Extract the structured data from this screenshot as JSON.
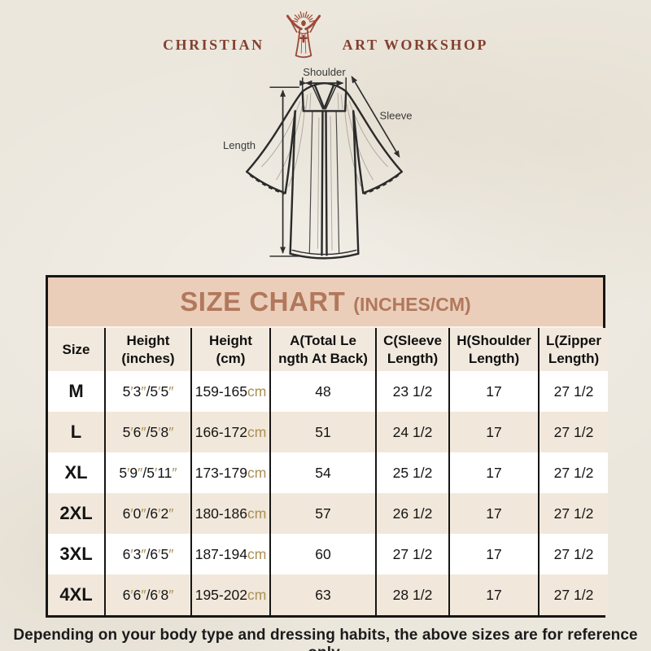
{
  "logo": {
    "left_text": "CHRISTIAN",
    "right_text": "ART WORKSHOP",
    "figure_icon": "jesus-rays-icon",
    "color": "#9c4b38"
  },
  "diagram": {
    "labels": {
      "shoulder": "Shoulder",
      "sleeve": "Sleeve",
      "length": "Length"
    }
  },
  "size_chart": {
    "title": "SIZE CHART",
    "subtitle": "(INCHES/CM)",
    "colors": {
      "band_bg": "#ebceba",
      "band_text": "#b1785c",
      "row_alt_bg": "#f1e8db",
      "accent_tan": "#ab9055",
      "border": "#161616"
    },
    "columns": [
      "Size",
      "Height\n(inches)",
      "Height\n(cm)",
      "A(Total Le\nngth At Back)",
      "C(Sleeve\nLength)",
      "H(Shoulder\nLength)",
      "L(Zipper\nLength)"
    ],
    "rows": [
      {
        "size": "M",
        "height_in": "5′3″/5′5″",
        "height_cm": "159-165cm",
        "a": "48",
        "c": "23 1/2",
        "h": "17",
        "l": "27 1/2"
      },
      {
        "size": "L",
        "height_in": "5′6″/5′8″",
        "height_cm": "166-172cm",
        "a": "51",
        "c": "24 1/2",
        "h": "17",
        "l": "27 1/2"
      },
      {
        "size": "XL",
        "height_in": "5′9″/5′11″",
        "height_cm": "173-179cm",
        "a": "54",
        "c": "25 1/2",
        "h": "17",
        "l": "27 1/2"
      },
      {
        "size": "2XL",
        "height_in": "6′0″/6′2″",
        "height_cm": "180-186cm",
        "a": "57",
        "c": "26 1/2",
        "h": "17",
        "l": "27 1/2"
      },
      {
        "size": "3XL",
        "height_in": "6′3″/6′5″",
        "height_cm": "187-194cm",
        "a": "60",
        "c": "27 1/2",
        "h": "17",
        "l": "27 1/2"
      },
      {
        "size": "4XL",
        "height_in": "6′6″/6′8″",
        "height_cm": "195-202cm",
        "a": "63",
        "c": "28 1/2",
        "h": "17",
        "l": "27 1/2"
      }
    ]
  },
  "chart_data": {
    "type": "table",
    "title": "SIZE CHART (INCHES/CM)",
    "columns": [
      "Size",
      "Height (inches)",
      "Height (cm)",
      "A(Total Length At Back)",
      "C(Sleeve Length)",
      "H(Shoulder Length)",
      "L(Zipper Length)"
    ],
    "rows": [
      [
        "M",
        "5′3″/5′5″",
        "159-165cm",
        "48",
        "23 1/2",
        "17",
        "27 1/2"
      ],
      [
        "L",
        "5′6″/5′8″",
        "166-172cm",
        "51",
        "24 1/2",
        "17",
        "27 1/2"
      ],
      [
        "XL",
        "5′9″/5′11″",
        "173-179cm",
        "54",
        "25 1/2",
        "17",
        "27 1/2"
      ],
      [
        "2XL",
        "6′0″/6′2″",
        "180-186cm",
        "57",
        "26 1/2",
        "17",
        "27 1/2"
      ],
      [
        "3XL",
        "6′3″/6′5″",
        "187-194cm",
        "60",
        "27 1/2",
        "17",
        "27 1/2"
      ],
      [
        "4XL",
        "6′6″/6′8″",
        "195-202cm",
        "63",
        "28 1/2",
        "17",
        "27 1/2"
      ]
    ]
  },
  "footer": {
    "note": "Depending on your body type and dressing habits, the above sizes are for reference only."
  }
}
